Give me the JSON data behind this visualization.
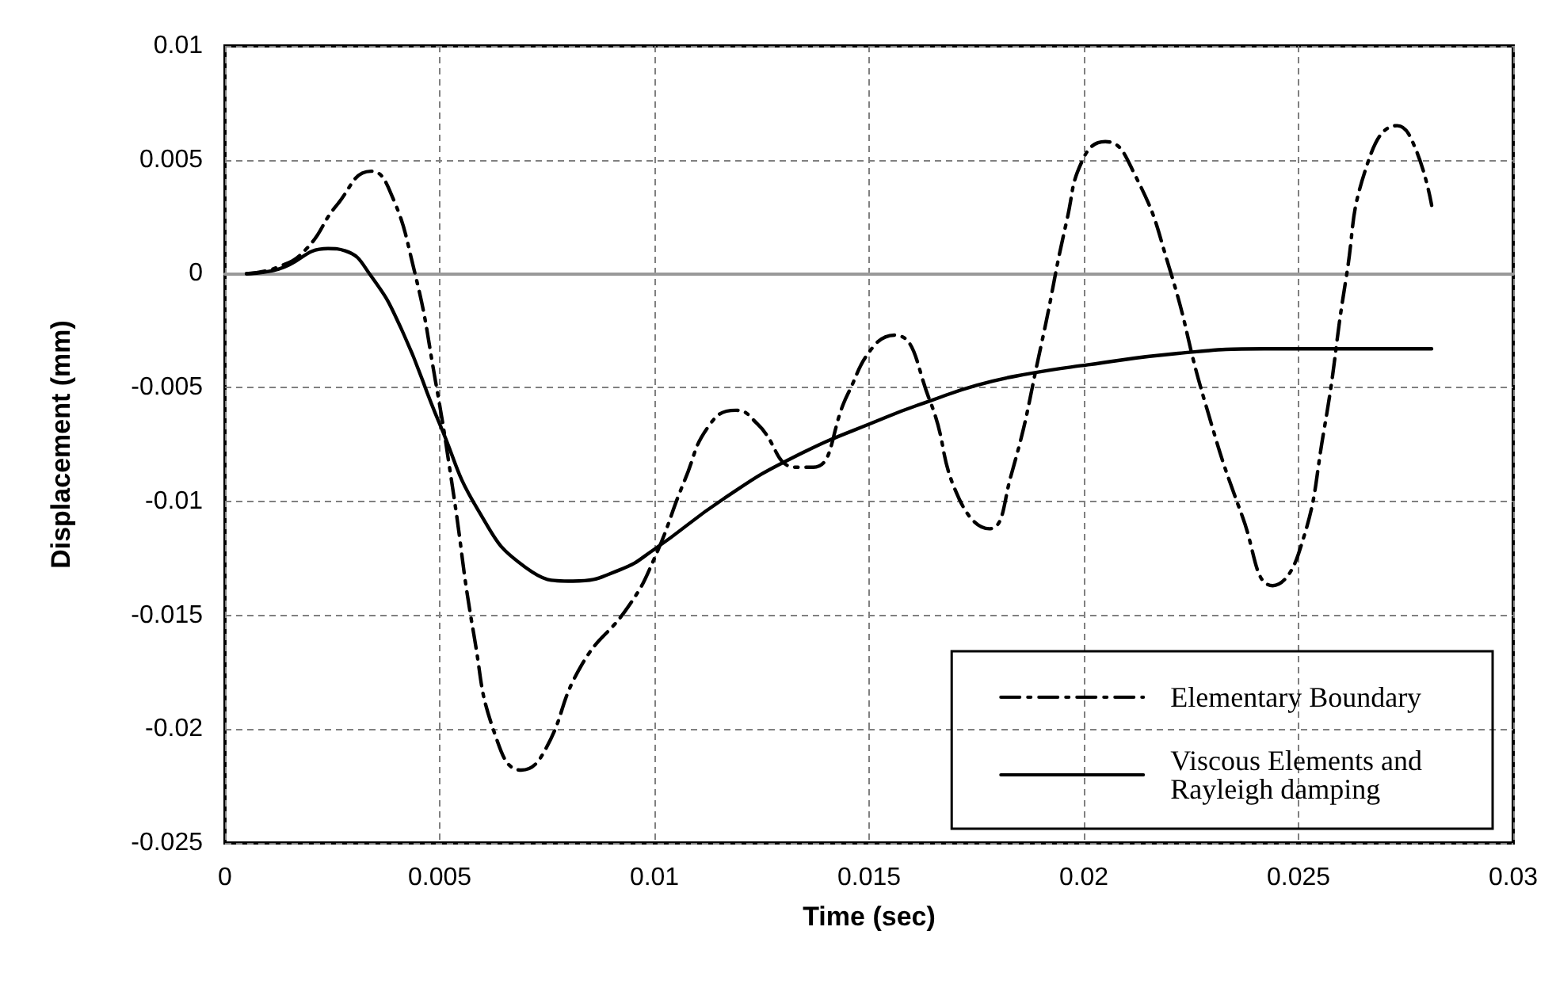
{
  "chart_data": {
    "type": "line",
    "xlabel": "Time (sec)",
    "ylabel": "Displacement (mm)",
    "xlim": [
      0,
      0.03
    ],
    "xticks": [
      0,
      0.005,
      0.01,
      0.015,
      0.02,
      0.025,
      0.03
    ],
    "ylim": [
      -0.025,
      0.01
    ],
    "yticks": [
      -0.025,
      -0.02,
      -0.015,
      -0.01,
      -0.005,
      0,
      0.005,
      0.01
    ],
    "grid": true,
    "legend": "bottom right",
    "marker": "none",
    "series": [
      {
        "name": "Elementary Boundary",
        "color": "#000000",
        "line_style": "dashdot",
        "x": [
          0.0005,
          0.00125,
          0.0019,
          0.0026,
          0.0034,
          0.0038,
          0.0044,
          0.0049,
          0.0053,
          0.0058,
          0.0063,
          0.0069,
          0.0074,
          0.0083,
          0.0094,
          0.01,
          0.0107,
          0.0113,
          0.0119,
          0.0124,
          0.0133,
          0.0137,
          0.0145,
          0.0151,
          0.0156,
          0.0164,
          0.0171,
          0.0178,
          0.0183,
          0.019,
          0.0196,
          0.02,
          0.0205,
          0.0212,
          0.022,
          0.0228,
          0.0237,
          0.0244,
          0.025,
          0.0256,
          0.0261,
          0.0266,
          0.0273,
          0.0277,
          0.0281
        ],
        "values": [
          0,
          0.0003,
          0.0011,
          0.003,
          0.0045,
          0.0038,
          0.0002,
          -0.0047,
          -0.0094,
          -0.0159,
          -0.0203,
          -0.0218,
          -0.0211,
          -0.0172,
          -0.0146,
          -0.0125,
          -0.0091,
          -0.0066,
          -0.006,
          -0.0066,
          -0.0085,
          -0.0085,
          -0.0053,
          -0.0032,
          -0.0027,
          -0.0055,
          -0.0099,
          -0.0112,
          -0.0089,
          -0.0032,
          0.0023,
          0.0051,
          0.0058,
          0.0043,
          0.0002,
          -0.0055,
          -0.0107,
          -0.0137,
          -0.0123,
          -0.0068,
          -0.0003,
          0.0048,
          0.0065,
          0.0056,
          0.003
        ]
      },
      {
        "name": "Viscous Elements and Rayleigh damping",
        "color": "#000000",
        "line_style": "solid",
        "x": [
          0.0005,
          0.00125,
          0.0024,
          0.0028,
          0.0034,
          0.0041,
          0.005,
          0.0059,
          0.007,
          0.0081,
          0.0092,
          0.01,
          0.0116,
          0.0132,
          0.0154,
          0.0164,
          0.0175,
          0.0187,
          0.0201,
          0.0222,
          0.0242,
          0.0262,
          0.0281
        ],
        "values": [
          0,
          0.0002,
          0.0011,
          0.001,
          -0.0001,
          -0.0024,
          -0.0066,
          -0.0104,
          -0.0129,
          -0.0135,
          -0.013,
          -0.0121,
          -0.0099,
          -0.0081,
          -0.0063,
          -0.0056,
          -0.0049,
          -0.0044,
          -0.004,
          -0.0035,
          -0.0033,
          -0.0033,
          -0.0033
        ]
      }
    ]
  }
}
